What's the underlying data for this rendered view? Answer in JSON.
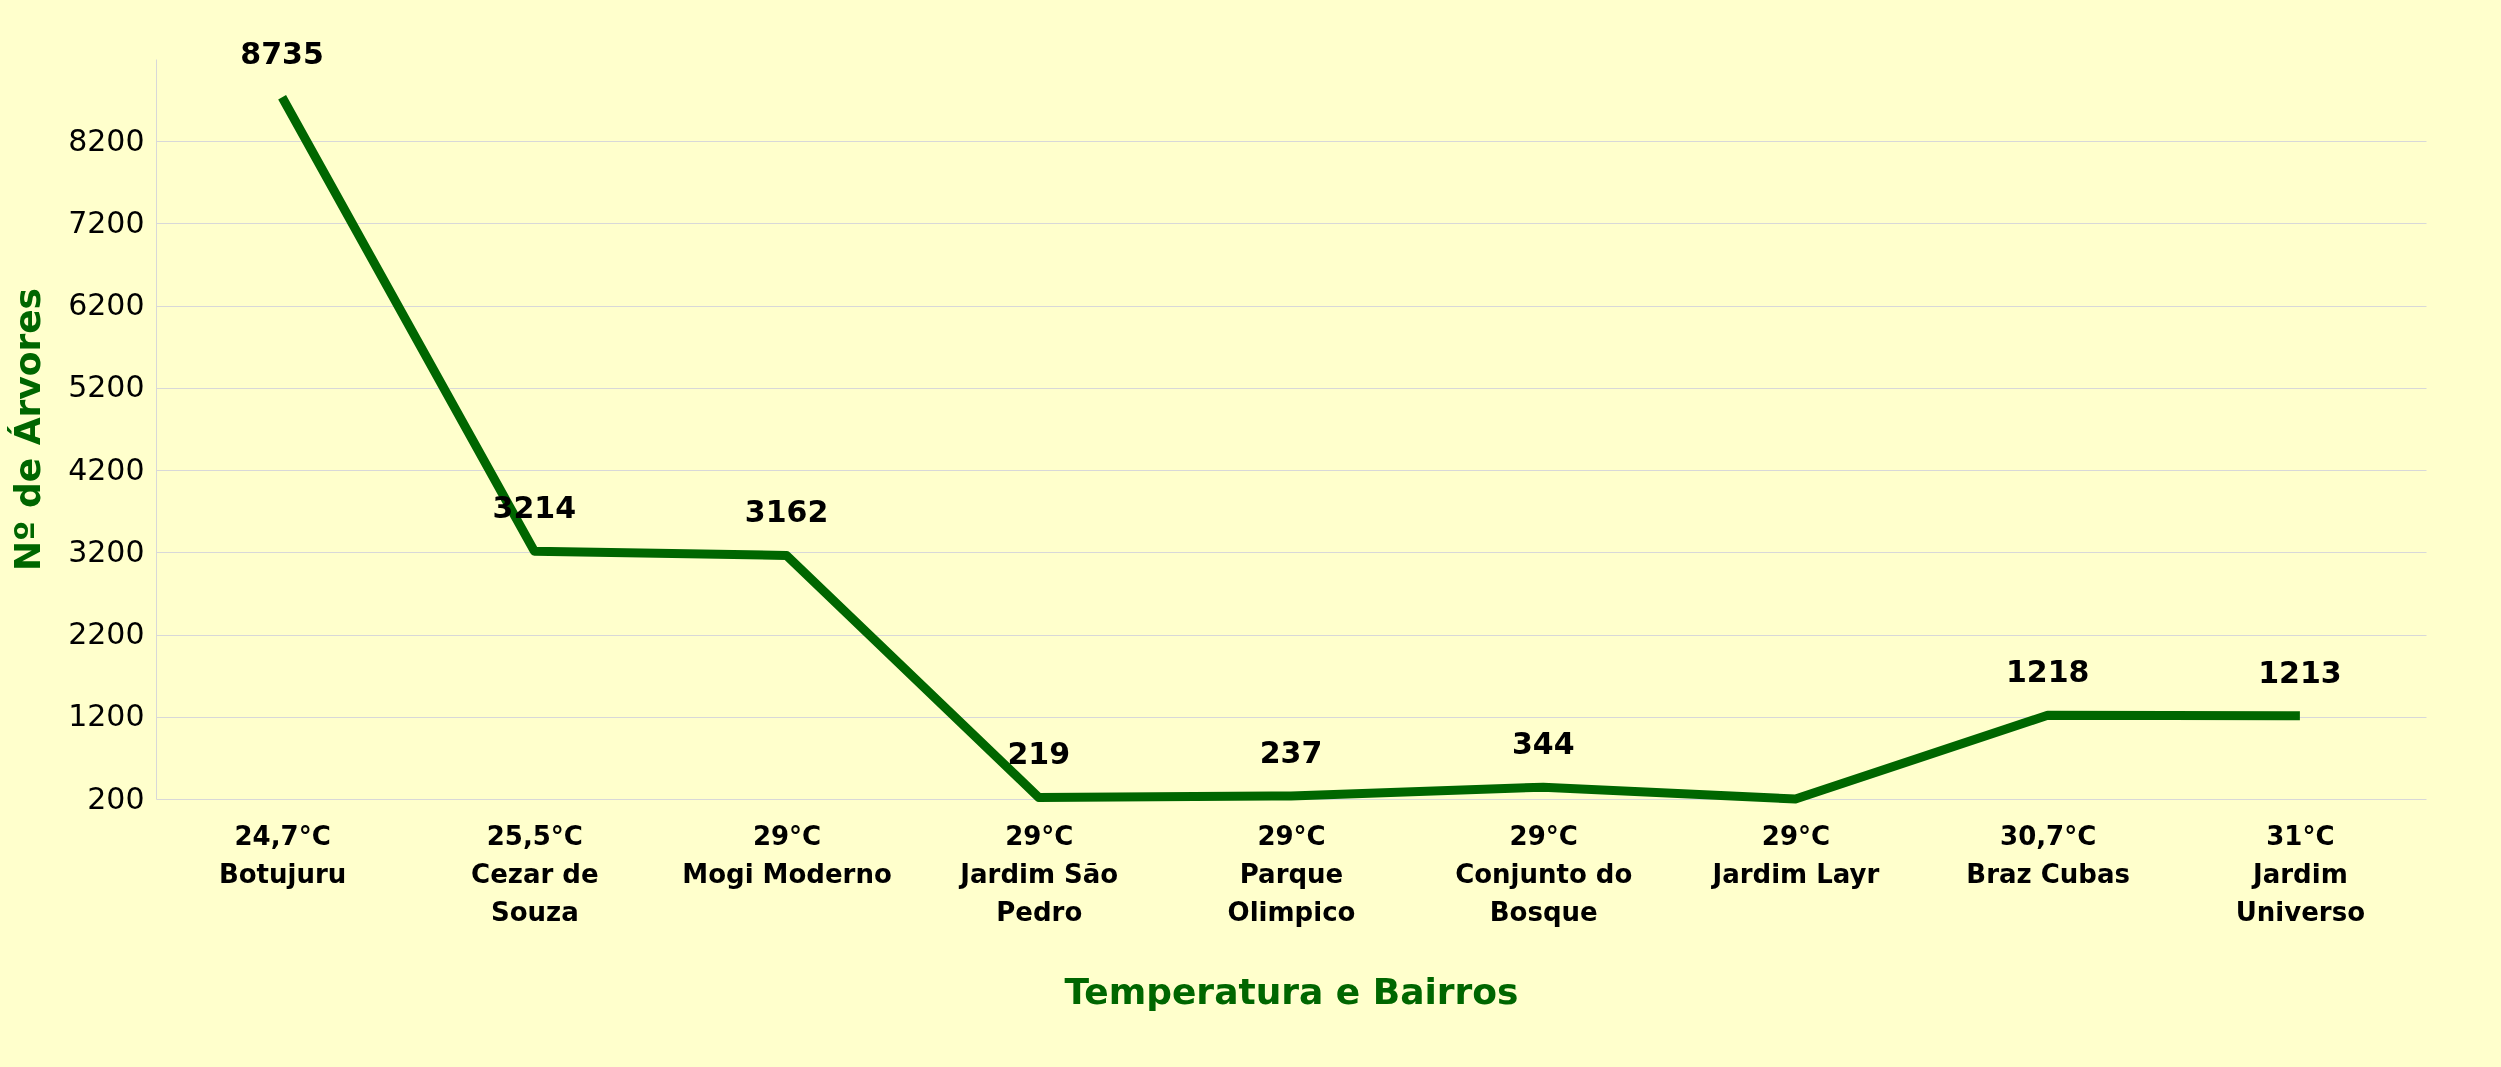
{
  "chart_data": {
    "type": "line",
    "xlabel": "Temperatura e Bairros",
    "ylabel": "Nº de Árvores",
    "categories": [
      "24,7°C\nBotujuru",
      "25,5°C\nCezar de\nSouza",
      "29°C\nMogi Moderno",
      "29°C\nJardim São\nPedro",
      "29°C\nParque\nOlimpico",
      "29°C\nConjunto do\nBosque",
      "29°C\nJardim Layr",
      "30,7°C\nBraz Cubas",
      "31°C\nJardim\nUniverso"
    ],
    "series": [
      {
        "color": "#006600",
        "values": [
          8735,
          3214,
          3162,
          219,
          237,
          344,
          200,
          1218,
          1213
        ],
        "value_labels": [
          "8735",
          "3214",
          "3162",
          "219",
          "237",
          "344",
          null,
          "1218",
          "1213"
        ]
      }
    ],
    "ylim": [
      200,
      9200
    ],
    "yticks": [
      200,
      1200,
      2200,
      3200,
      4200,
      5200,
      6200,
      7200,
      8200
    ],
    "grid": "y",
    "marker": "none",
    "line_style": "solid",
    "legend": false
  }
}
